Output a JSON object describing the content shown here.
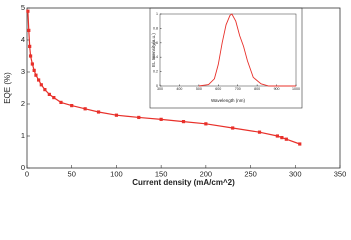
{
  "chart_data": [
    {
      "type": "line",
      "xlabel": "Current density (mA/cm^2)",
      "ylabel": "EQE (%)",
      "x": [
        1,
        2,
        3,
        4,
        6,
        8,
        10,
        13,
        16,
        20,
        25,
        30,
        38,
        50,
        65,
        80,
        100,
        125,
        150,
        175,
        200,
        230,
        260,
        280,
        285,
        290,
        305
      ],
      "series": [
        {
          "color": "#e8302a",
          "marker": "square",
          "values": [
            4.9,
            4.3,
            3.8,
            3.5,
            3.25,
            3.05,
            2.9,
            2.75,
            2.6,
            2.45,
            2.3,
            2.2,
            2.05,
            1.95,
            1.85,
            1.75,
            1.65,
            1.58,
            1.52,
            1.45,
            1.38,
            1.25,
            1.12,
            1.0,
            0.95,
            0.9,
            0.75
          ]
        }
      ],
      "xlim": [
        0,
        350
      ],
      "xticks": [
        0,
        50,
        100,
        150,
        200,
        250,
        300,
        350
      ],
      "ylim": [
        0,
        5
      ],
      "yticks": [
        0,
        1,
        2,
        3,
        4,
        5
      ]
    },
    {
      "type": "line",
      "xlabel": "Wavelength (nm)",
      "ylabel": "EL Intensity(a.u.)",
      "x": [
        500,
        550,
        580,
        600,
        620,
        640,
        660,
        670,
        690,
        710,
        730,
        750,
        780,
        820,
        860,
        1000
      ],
      "series": [
        {
          "color": "#e8302a",
          "values": [
            0,
            0.02,
            0.1,
            0.3,
            0.6,
            0.85,
            0.98,
            1.0,
            0.9,
            0.7,
            0.55,
            0.35,
            0.12,
            0.03,
            0,
            0
          ]
        }
      ],
      "xlim": [
        300,
        1000
      ],
      "xticks": [
        300,
        400,
        500,
        600,
        700,
        800,
        900,
        1000
      ],
      "ylim": [
        0,
        1.0
      ],
      "yticks": [
        0,
        0.2,
        0.4,
        0.6,
        0.8,
        1.0
      ]
    }
  ]
}
